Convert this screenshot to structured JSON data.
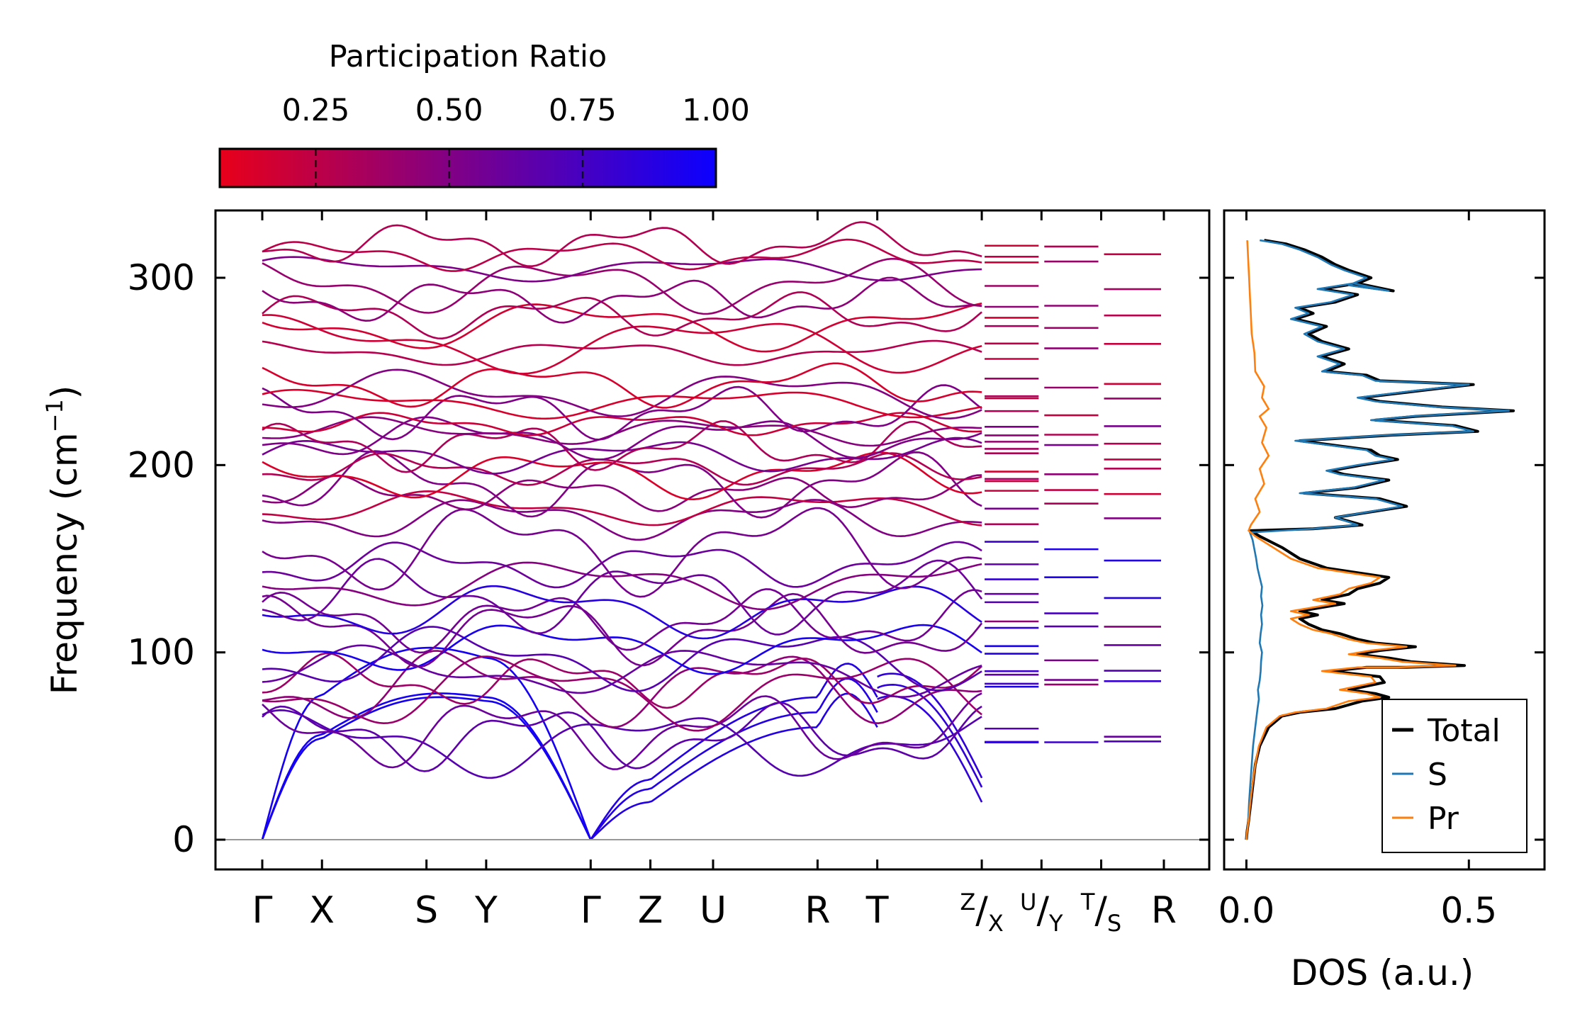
{
  "colorbar": {
    "title": "Participation Ratio",
    "ticks": [
      "0.25",
      "0.50",
      "0.75",
      "1.00"
    ],
    "range": [
      0.07,
      1.0
    ],
    "low_color": "#e8001a",
    "high_color": "#0b00ff"
  },
  "chart_data": [
    {
      "type": "line",
      "title": "",
      "ylabel_main": "Frequency (cm",
      "ylabel_sup": "−1",
      "ylabel_close": ")",
      "xlabel": "",
      "ylim": [
        -15,
        337
      ],
      "yticks": [
        {
          "value": 0,
          "label": "0"
        },
        {
          "value": 100,
          "label": "100"
        },
        {
          "value": 200,
          "label": "200"
        },
        {
          "value": 300,
          "label": "300"
        }
      ],
      "kpoints": [
        {
          "label": "Γ",
          "pos": 0.0
        },
        {
          "label": "X",
          "pos": 1.0
        },
        {
          "label": "S",
          "pos": 2.75
        },
        {
          "label": "Y",
          "pos": 3.75
        },
        {
          "label": "Γ",
          "pos": 5.5
        },
        {
          "label": "Z",
          "pos": 6.5
        },
        {
          "label": "U",
          "pos": 7.55
        },
        {
          "label": "R",
          "pos": 9.3
        },
        {
          "label": "T",
          "pos": 10.3
        },
        {
          "label": "R",
          "pos": 15.1
        }
      ],
      "compound_labels": [
        {
          "pos": 12.05,
          "sup": "Z",
          "mid": "/",
          "sub": "X"
        },
        {
          "pos": 13.05,
          "sup": "U",
          "mid": "/",
          "sub": "Y"
        },
        {
          "pos": 14.05,
          "sup": "T",
          "mid": "/",
          "sub": "S"
        }
      ],
      "x_total": 15.1,
      "segments": [
        [
          0.0,
          5.5
        ],
        [
          5.5,
          10.3
        ],
        [
          10.3,
          12.05
        ],
        [
          12.05,
          13.05
        ],
        [
          13.05,
          14.05
        ],
        [
          14.05,
          15.1
        ]
      ],
      "acoustic_gamma_max": [
        54,
        56,
        77
      ],
      "acoustic_z": [
        20,
        27,
        32
      ],
      "acoustic_end": [
        20,
        28,
        33
      ],
      "optical_low_bands_gamma": [
        52,
        55,
        58,
        80,
        82,
        85,
        90,
        97,
        103,
        112,
        117,
        123,
        130,
        137,
        147,
        156
      ],
      "optical_high_bands_gamma": [
        172,
        177,
        185,
        190,
        195,
        198,
        205,
        210,
        215,
        218,
        222,
        228,
        233,
        238,
        243,
        260,
        265,
        275,
        280,
        288,
        296,
        305,
        312,
        318
      ],
      "series_note": "phonon dispersion, 72 branches, colored by participation ratio"
    },
    {
      "type": "line",
      "title": "",
      "xlabel": "DOS (a.u.)",
      "xlim": [
        -0.05,
        0.67
      ],
      "ylim": [
        -15,
        337
      ],
      "xticks": [
        {
          "value": 0.0,
          "label": "0.0"
        },
        {
          "value": 0.5,
          "label": "0.5"
        }
      ],
      "legend_position": "bottom-right",
      "series": [
        {
          "name": "Total",
          "color": "#000000",
          "points": [
            [
              0,
              0
            ],
            [
              0.002,
              5
            ],
            [
              0.005,
              10
            ],
            [
              0.01,
              20
            ],
            [
              0.015,
              30
            ],
            [
              0.02,
              40
            ],
            [
              0.03,
              50
            ],
            [
              0.05,
              60
            ],
            [
              0.08,
              66
            ],
            [
              0.12,
              68
            ],
            [
              0.2,
              70
            ],
            [
              0.26,
              74
            ],
            [
              0.32,
              76
            ],
            [
              0.29,
              78
            ],
            [
              0.23,
              80
            ],
            [
              0.31,
              84
            ],
            [
              0.3,
              87
            ],
            [
              0.19,
              90
            ],
            [
              0.27,
              92
            ],
            [
              0.36,
              92
            ],
            [
              0.49,
              93
            ],
            [
              0.37,
              95
            ],
            [
              0.32,
              97
            ],
            [
              0.25,
              99
            ],
            [
              0.3,
              101
            ],
            [
              0.38,
              103
            ],
            [
              0.29,
              105
            ],
            [
              0.25,
              107
            ],
            [
              0.21,
              110
            ],
            [
              0.17,
              112
            ],
            [
              0.14,
              115
            ],
            [
              0.12,
              118
            ],
            [
              0.16,
              120
            ],
            [
              0.12,
              122
            ],
            [
              0.17,
              124
            ],
            [
              0.22,
              126
            ],
            [
              0.17,
              128
            ],
            [
              0.23,
              131
            ],
            [
              0.25,
              134
            ],
            [
              0.3,
              137
            ],
            [
              0.32,
              140
            ],
            [
              0.18,
              145
            ],
            [
              0.12,
              150
            ],
            [
              0.08,
              156
            ],
            [
              0.03,
              162
            ],
            [
              0.01,
              165
            ],
            [
              0.15,
              166
            ],
            [
              0.26,
              168
            ],
            [
              0.2,
              172
            ],
            [
              0.36,
              178
            ],
            [
              0.3,
              182
            ],
            [
              0.13,
              185
            ],
            [
              0.25,
              188
            ],
            [
              0.32,
              192
            ],
            [
              0.22,
              195
            ],
            [
              0.19,
              197
            ],
            [
              0.26,
              200
            ],
            [
              0.34,
              203
            ],
            [
              0.3,
              205
            ],
            [
              0.28,
              208
            ],
            [
              0.12,
              213
            ],
            [
              0.33,
              216
            ],
            [
              0.52,
              218
            ],
            [
              0.47,
              221
            ],
            [
              0.29,
              224
            ],
            [
              0.38,
              226
            ],
            [
              0.6,
              229
            ],
            [
              0.44,
              231
            ],
            [
              0.3,
              234
            ],
            [
              0.26,
              236
            ],
            [
              0.4,
              240
            ],
            [
              0.51,
              243
            ],
            [
              0.3,
              245
            ],
            [
              0.27,
              248
            ],
            [
              0.18,
              250
            ],
            [
              0.22,
              254
            ],
            [
              0.17,
              258
            ],
            [
              0.23,
              262
            ],
            [
              0.17,
              266
            ],
            [
              0.14,
              270
            ],
            [
              0.18,
              274
            ],
            [
              0.11,
              278
            ],
            [
              0.15,
              281
            ],
            [
              0.12,
              284
            ],
            [
              0.2,
              287
            ],
            [
              0.25,
              291
            ],
            [
              0.17,
              294
            ],
            [
              0.25,
              297
            ],
            [
              0.33,
              293
            ],
            [
              0.24,
              296
            ],
            [
              0.28,
              300
            ],
            [
              0.23,
              304
            ],
            [
              0.2,
              307
            ],
            [
              0.17,
              311
            ],
            [
              0.13,
              315
            ],
            [
              0.09,
              318
            ],
            [
              0.04,
              320
            ]
          ]
        },
        {
          "name": "S",
          "color": "#1f77b4",
          "points": [
            [
              0,
              0
            ],
            [
              0.002,
              5
            ],
            [
              0.004,
              10
            ],
            [
              0.006,
              20
            ],
            [
              0.009,
              30
            ],
            [
              0.012,
              40
            ],
            [
              0.015,
              50
            ],
            [
              0.02,
              60
            ],
            [
              0.025,
              70
            ],
            [
              0.028,
              75
            ],
            [
              0.026,
              80
            ],
            [
              0.03,
              85
            ],
            [
              0.032,
              90
            ],
            [
              0.033,
              95
            ],
            [
              0.035,
              100
            ],
            [
              0.03,
              105
            ],
            [
              0.032,
              110
            ],
            [
              0.035,
              115
            ],
            [
              0.033,
              120
            ],
            [
              0.036,
              125
            ],
            [
              0.033,
              130
            ],
            [
              0.035,
              135
            ],
            [
              0.03,
              140
            ],
            [
              0.025,
              145
            ],
            [
              0.022,
              150
            ],
            [
              0.018,
              155
            ],
            [
              0.014,
              160
            ],
            [
              0.008,
              164
            ],
            [
              0.15,
              166
            ],
            [
              0.25,
              168
            ],
            [
              0.2,
              172
            ],
            [
              0.35,
              178
            ],
            [
              0.29,
              182
            ],
            [
              0.12,
              185
            ],
            [
              0.24,
              188
            ],
            [
              0.31,
              192
            ],
            [
              0.21,
              195
            ],
            [
              0.18,
              197
            ],
            [
              0.25,
              200
            ],
            [
              0.33,
              203
            ],
            [
              0.29,
              205
            ],
            [
              0.27,
              208
            ],
            [
              0.11,
              213
            ],
            [
              0.32,
              216
            ],
            [
              0.51,
              218
            ],
            [
              0.46,
              221
            ],
            [
              0.28,
              224
            ],
            [
              0.37,
              226
            ],
            [
              0.59,
              229
            ],
            [
              0.43,
              231
            ],
            [
              0.29,
              234
            ],
            [
              0.25,
              236
            ],
            [
              0.39,
              240
            ],
            [
              0.5,
              243
            ],
            [
              0.29,
              245
            ],
            [
              0.26,
              248
            ],
            [
              0.17,
              250
            ],
            [
              0.21,
              254
            ],
            [
              0.16,
              258
            ],
            [
              0.22,
              262
            ],
            [
              0.16,
              266
            ],
            [
              0.13,
              270
            ],
            [
              0.17,
              274
            ],
            [
              0.1,
              278
            ],
            [
              0.14,
              281
            ],
            [
              0.11,
              284
            ],
            [
              0.19,
              287
            ],
            [
              0.24,
              291
            ],
            [
              0.16,
              294
            ],
            [
              0.24,
              297
            ],
            [
              0.32,
              293
            ],
            [
              0.23,
              296
            ],
            [
              0.27,
              300
            ],
            [
              0.22,
              304
            ],
            [
              0.19,
              307
            ],
            [
              0.16,
              311
            ],
            [
              0.12,
              315
            ],
            [
              0.08,
              318
            ],
            [
              0.03,
              320
            ]
          ]
        },
        {
          "name": "Pr",
          "color": "#ff7f0e",
          "points": [
            [
              0,
              0
            ],
            [
              0.002,
              5
            ],
            [
              0.005,
              10
            ],
            [
              0.009,
              20
            ],
            [
              0.014,
              30
            ],
            [
              0.02,
              40
            ],
            [
              0.028,
              50
            ],
            [
              0.045,
              60
            ],
            [
              0.075,
              66
            ],
            [
              0.11,
              68
            ],
            [
              0.18,
              70
            ],
            [
              0.23,
              74
            ],
            [
              0.3,
              76
            ],
            [
              0.27,
              78
            ],
            [
              0.21,
              80
            ],
            [
              0.29,
              84
            ],
            [
              0.28,
              87
            ],
            [
              0.17,
              90
            ],
            [
              0.25,
              92
            ],
            [
              0.34,
              92
            ],
            [
              0.47,
              93
            ],
            [
              0.35,
              95
            ],
            [
              0.3,
              97
            ],
            [
              0.23,
              99
            ],
            [
              0.28,
              101
            ],
            [
              0.36,
              103
            ],
            [
              0.27,
              105
            ],
            [
              0.23,
              107
            ],
            [
              0.19,
              110
            ],
            [
              0.15,
              112
            ],
            [
              0.12,
              115
            ],
            [
              0.1,
              118
            ],
            [
              0.14,
              120
            ],
            [
              0.1,
              122
            ],
            [
              0.15,
              124
            ],
            [
              0.2,
              126
            ],
            [
              0.15,
              128
            ],
            [
              0.21,
              131
            ],
            [
              0.23,
              134
            ],
            [
              0.28,
              137
            ],
            [
              0.3,
              140
            ],
            [
              0.16,
              145
            ],
            [
              0.1,
              150
            ],
            [
              0.06,
              156
            ],
            [
              0.02,
              162
            ],
            [
              0.005,
              165
            ],
            [
              0.01,
              168
            ],
            [
              0.03,
              175
            ],
            [
              0.02,
              182
            ],
            [
              0.04,
              190
            ],
            [
              0.03,
              198
            ],
            [
              0.05,
              205
            ],
            [
              0.035,
              212
            ],
            [
              0.045,
              220
            ],
            [
              0.03,
              226
            ],
            [
              0.05,
              230
            ],
            [
              0.035,
              236
            ],
            [
              0.04,
              242
            ],
            [
              0.02,
              250
            ],
            [
              0.018,
              260
            ],
            [
              0.012,
              270
            ],
            [
              0.01,
              280
            ],
            [
              0.008,
              290
            ],
            [
              0.006,
              300
            ],
            [
              0.004,
              310
            ],
            [
              0.002,
              320
            ]
          ]
        }
      ]
    }
  ]
}
